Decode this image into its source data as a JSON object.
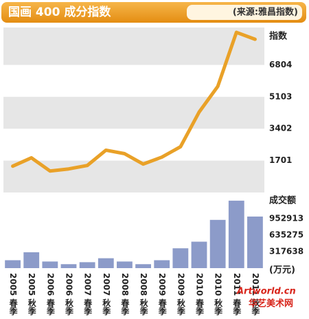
{
  "chart_data": [
    {
      "type": "line",
      "title": "国画 400 成分指数",
      "subtitle": "(来源:雅昌指数)",
      "y_label": "指数",
      "values": [
        1405,
        1850,
        1146,
        1257,
        1442,
        2256,
        2071,
        1516,
        1886,
        2441,
        4290,
        5658,
        8542,
        8172
      ],
      "color": "#e9a128",
      "ylim": [
        0,
        8800
      ],
      "yticks": [
        1701,
        3402,
        5103,
        6804
      ],
      "grid": true
    },
    {
      "type": "bar",
      "y_label": "成交额",
      "unit": "(万元)",
      "categories": [
        "2005 春季",
        "2005 秋季",
        "2006 春季",
        "2006 秋季",
        "2007 春季",
        "2007 秋季",
        "2008 春季",
        "2008 秋季",
        "2009 春季",
        "2009 秋季",
        "2010 春季",
        "2010 秋季",
        "2011 春季",
        "2011 秋季"
      ],
      "values": [
        152000,
        305000,
        127000,
        76000,
        114000,
        190000,
        127000,
        76000,
        152000,
        381000,
        508000,
        927000,
        1296000,
        991000
      ],
      "color": "#8c9bc9",
      "ylim": [
        0,
        1400000
      ],
      "yticks": [
        317638,
        635275,
        952913
      ]
    }
  ],
  "watermark": {
    "site": "Artworld.cn",
    "name": "华艺美术网"
  }
}
